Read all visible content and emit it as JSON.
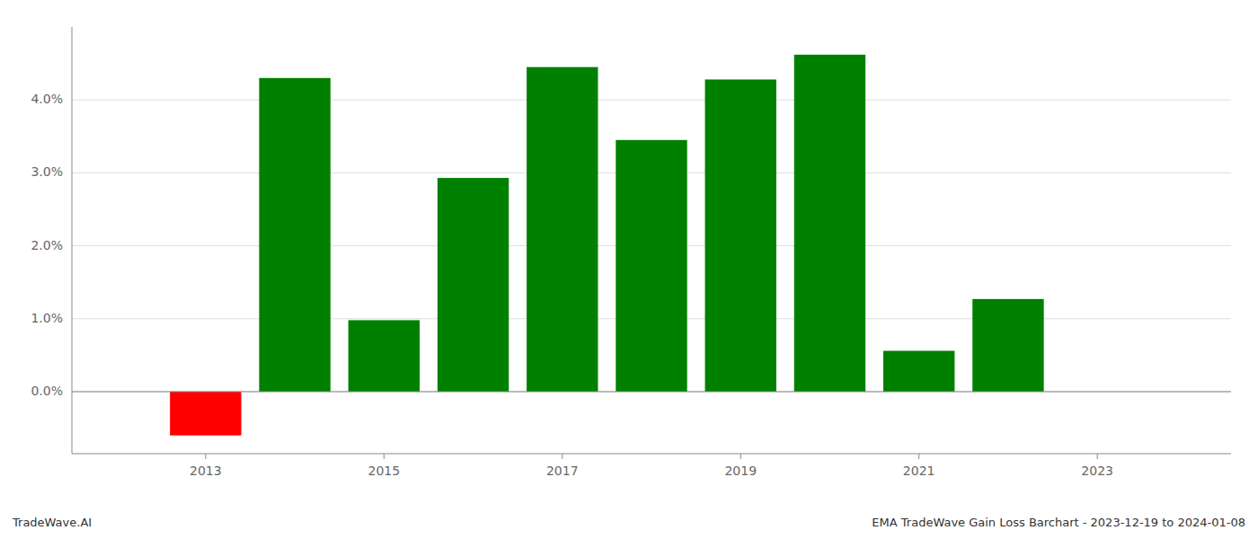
{
  "chart_data": {
    "type": "bar",
    "x": [
      2013,
      2014,
      2015,
      2016,
      2017,
      2018,
      2019,
      2020,
      2021,
      2022
    ],
    "values": [
      -0.6,
      4.3,
      0.98,
      2.93,
      4.45,
      3.45,
      4.28,
      4.62,
      0.56,
      1.27
    ],
    "colors": [
      "#ff0000",
      "#008000",
      "#008000",
      "#008000",
      "#008000",
      "#008000",
      "#008000",
      "#008000",
      "#008000",
      "#008000"
    ],
    "xlim": [
      2011.5,
      2024.5
    ],
    "xticks": [
      2013,
      2015,
      2017,
      2019,
      2021,
      2023
    ],
    "ylim": [
      -0.85,
      5.0
    ],
    "yticks": [
      {
        "value": 0.0,
        "label": "0.0%"
      },
      {
        "value": 1.0,
        "label": "1.0%"
      },
      {
        "value": 2.0,
        "label": "2.0%"
      },
      {
        "value": 3.0,
        "label": "3.0%"
      },
      {
        "value": 4.0,
        "label": "4.0%"
      }
    ],
    "grid": true,
    "annotations": [
      "TradeWave.AI",
      "EMA TradeWave Gain Loss Barchart - 2023-12-19 to 2024-01-08"
    ]
  }
}
